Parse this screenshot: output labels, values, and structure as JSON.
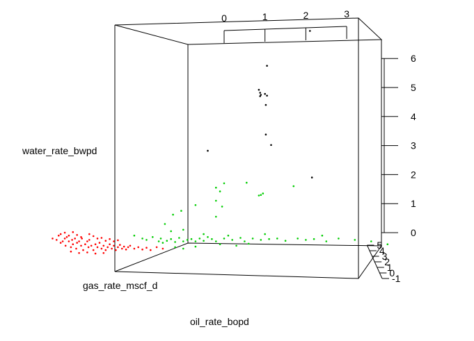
{
  "chart_data": {
    "type": "scatter",
    "projection": "3d",
    "xlabel": "oil_rate_bopd",
    "ylabel": "gas_rate_mscf_d",
    "zlabel": "water_rate_bwpd",
    "top_axis_ticks": [
      "0",
      "1",
      "2",
      "3"
    ],
    "z_ticks": [
      "0",
      "1",
      "2",
      "3",
      "4",
      "5",
      "6"
    ],
    "y_ticks": [
      "-1",
      "0",
      "1",
      "2",
      "3",
      "4",
      "5"
    ],
    "grid": false,
    "legend": "none",
    "colors": {
      "cluster_red": "#ff0000",
      "cluster_green": "#00cd00",
      "cluster_black": "#000000"
    },
    "series": [
      {
        "color": "#000000",
        "points": [
          [
            1.05,
            5.75
          ],
          [
            0.85,
            4.92
          ],
          [
            0.88,
            4.82
          ],
          [
            0.9,
            4.75
          ],
          [
            0.88,
            4.7
          ],
          [
            1.0,
            4.78
          ],
          [
            1.05,
            4.72
          ],
          [
            1.02,
            4.4
          ],
          [
            1.02,
            3.38
          ],
          [
            1.15,
            3.02
          ],
          [
            -0.4,
            2.82
          ],
          [
            2.15,
            1.9
          ],
          [
            2.1,
            6.95
          ]
        ]
      },
      {
        "color": "#00cd00",
        "points": [
          [
            -0.2,
            1.55
          ],
          [
            -0.1,
            1.42
          ],
          [
            0.0,
            1.7
          ],
          [
            0.55,
            1.72
          ],
          [
            -0.2,
            1.1
          ],
          [
            -0.7,
            0.95
          ],
          [
            -0.05,
            0.9
          ],
          [
            -1.05,
            0.75
          ],
          [
            -1.25,
            0.62
          ],
          [
            -0.2,
            0.55
          ],
          [
            -1.45,
            0.3
          ],
          [
            -1.0,
            0.1
          ],
          [
            0.85,
            1.28
          ],
          [
            0.95,
            1.35
          ],
          [
            1.7,
            1.6
          ],
          [
            0.9,
            1.3
          ],
          [
            -2.2,
            -0.1
          ],
          [
            -2.0,
            -0.2
          ],
          [
            -1.9,
            -0.25
          ],
          [
            -1.75,
            -0.15
          ],
          [
            -1.6,
            -0.3
          ],
          [
            -1.55,
            -0.2
          ],
          [
            -1.5,
            -0.35
          ],
          [
            -1.4,
            -0.28
          ],
          [
            -1.3,
            -0.22
          ],
          [
            -1.2,
            -0.32
          ],
          [
            -1.1,
            -0.18
          ],
          [
            -1.0,
            -0.3
          ],
          [
            -0.9,
            -0.25
          ],
          [
            -0.8,
            -0.22
          ],
          [
            -0.7,
            -0.3
          ],
          [
            -0.6,
            -0.2
          ],
          [
            -0.5,
            -0.28
          ],
          [
            -0.4,
            -0.15
          ],
          [
            -0.3,
            -0.22
          ],
          [
            -0.2,
            -0.3
          ],
          [
            0.0,
            -0.2
          ],
          [
            0.2,
            -0.25
          ],
          [
            0.4,
            -0.18
          ],
          [
            0.5,
            -0.3
          ],
          [
            0.7,
            -0.2
          ],
          [
            0.9,
            -0.25
          ],
          [
            1.1,
            -0.22
          ],
          [
            1.3,
            -0.2
          ],
          [
            1.5,
            -0.28
          ],
          [
            1.8,
            -0.2
          ],
          [
            2.0,
            -0.25
          ],
          [
            2.2,
            -0.22
          ],
          [
            2.5,
            -0.3
          ],
          [
            2.8,
            -0.2
          ],
          [
            3.2,
            -0.25
          ],
          [
            3.6,
            -0.3
          ],
          [
            4.0,
            -0.4
          ],
          [
            -0.1,
            -0.4
          ],
          [
            0.3,
            -0.45
          ],
          [
            0.6,
            -0.38
          ],
          [
            -1.2,
            -0.5
          ],
          [
            -1.0,
            -0.55
          ],
          [
            -0.7,
            -0.48
          ],
          [
            0.1,
            -0.1
          ],
          [
            1.0,
            -0.05
          ],
          [
            -1.3,
            0.05
          ],
          [
            -0.5,
            -0.05
          ],
          [
            2.4,
            -0.1
          ]
        ]
      },
      {
        "color": "#ff0000",
        "points": [
          [
            -4.2,
            -0.2
          ],
          [
            -4.1,
            -0.25
          ],
          [
            -4.05,
            -0.1
          ],
          [
            -4.0,
            -0.35
          ],
          [
            -3.95,
            -0.3
          ],
          [
            -3.9,
            -0.2
          ],
          [
            -3.88,
            -0.45
          ],
          [
            -3.85,
            -0.15
          ],
          [
            -3.8,
            -0.3
          ],
          [
            -3.75,
            -0.5
          ],
          [
            -3.72,
            -0.25
          ],
          [
            -3.7,
            -0.4
          ],
          [
            -3.65,
            -0.2
          ],
          [
            -3.62,
            -0.55
          ],
          [
            -3.6,
            -0.35
          ],
          [
            -3.55,
            -0.3
          ],
          [
            -3.5,
            -0.45
          ],
          [
            -3.48,
            -0.2
          ],
          [
            -3.45,
            -0.6
          ],
          [
            -3.4,
            -0.4
          ],
          [
            -3.35,
            -0.3
          ],
          [
            -3.32,
            -0.5
          ],
          [
            -3.3,
            -0.25
          ],
          [
            -3.25,
            -0.45
          ],
          [
            -3.2,
            -0.6
          ],
          [
            -3.15,
            -0.4
          ],
          [
            -3.1,
            -0.5
          ],
          [
            -3.05,
            -0.35
          ],
          [
            -3.0,
            -0.55
          ],
          [
            -2.95,
            -0.45
          ],
          [
            -2.9,
            -0.6
          ],
          [
            -2.85,
            -0.5
          ],
          [
            -2.8,
            -0.4
          ],
          [
            -2.75,
            -0.55
          ],
          [
            -2.7,
            -0.45
          ],
          [
            -2.65,
            -0.6
          ],
          [
            -2.6,
            -0.5
          ],
          [
            -2.55,
            -0.42
          ],
          [
            -2.5,
            -0.55
          ],
          [
            -2.45,
            -0.48
          ],
          [
            -2.4,
            -0.58
          ],
          [
            -2.35,
            -0.5
          ],
          [
            -2.3,
            -0.45
          ],
          [
            -2.2,
            -0.55
          ],
          [
            -2.1,
            -0.5
          ],
          [
            -2.0,
            -0.58
          ],
          [
            -1.9,
            -0.52
          ],
          [
            -1.8,
            -0.6
          ],
          [
            -1.65,
            -0.5
          ],
          [
            -1.5,
            -0.55
          ],
          [
            -4.0,
            -0.05
          ],
          [
            -3.9,
            0.0
          ],
          [
            -3.8,
            -0.1
          ],
          [
            -3.7,
            0.02
          ],
          [
            -3.6,
            -0.08
          ],
          [
            -3.5,
            -0.15
          ],
          [
            -3.3,
            -0.05
          ],
          [
            -3.2,
            -0.12
          ],
          [
            -3.1,
            -0.2
          ],
          [
            -3.0,
            -0.18
          ],
          [
            -2.9,
            -0.28
          ],
          [
            -2.8,
            -0.22
          ],
          [
            -2.7,
            -0.3
          ],
          [
            -2.6,
            -0.26
          ],
          [
            -3.75,
            -0.65
          ],
          [
            -3.55,
            -0.7
          ],
          [
            -3.35,
            -0.68
          ],
          [
            -3.15,
            -0.72
          ],
          [
            -2.95,
            -0.7
          ]
        ]
      }
    ]
  }
}
